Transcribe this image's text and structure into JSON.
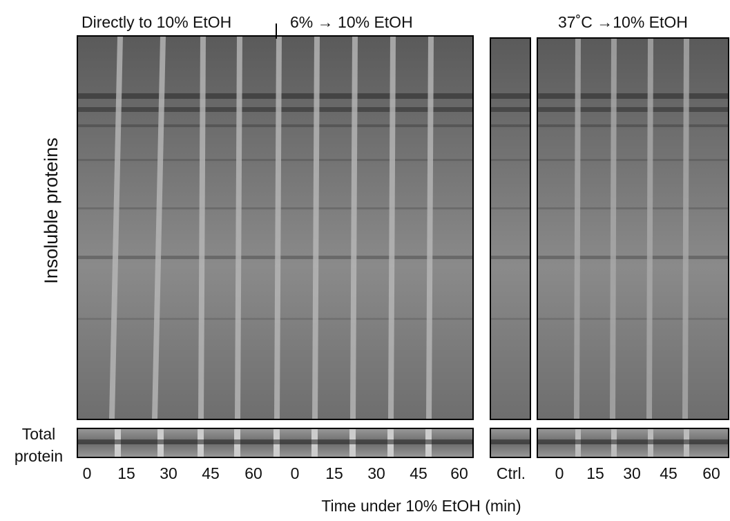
{
  "group_labels": [
    "Directly to 10% EtOH",
    "6% → 10% EtOH",
    "37˚C →10% EtOH"
  ],
  "y_label": "Insoluble proteins",
  "strip_label": [
    "Total",
    "protein"
  ],
  "lanes": [
    "0",
    "15",
    "30",
    "45",
    "60",
    "0",
    "15",
    "30",
    "45",
    "60",
    "Ctrl.",
    "0",
    "15",
    "30",
    "45",
    "60"
  ],
  "x_label": "Time under 10% EtOH (min)"
}
